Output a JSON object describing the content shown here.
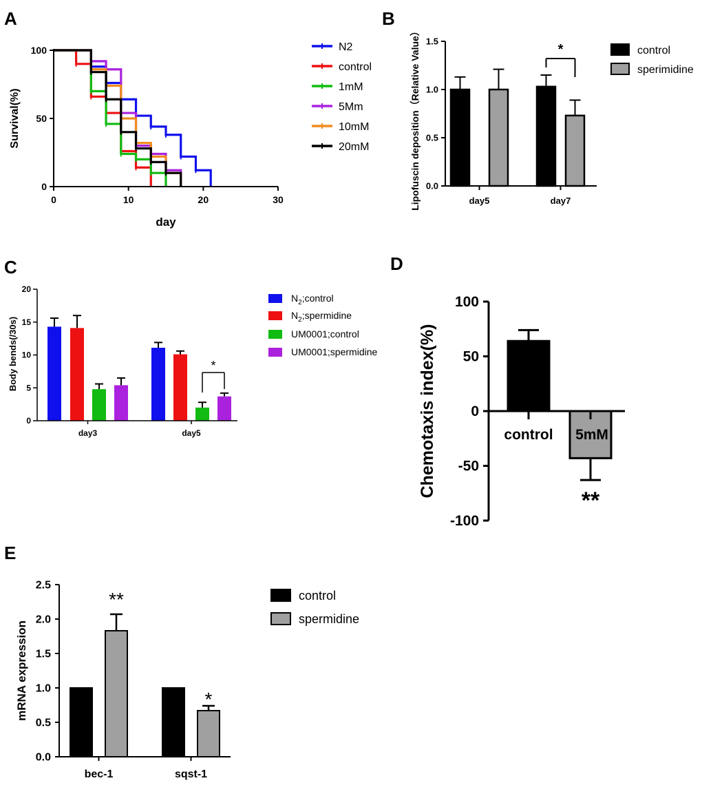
{
  "colors": {
    "blue": "#1010ee",
    "red": "#ee1111",
    "green": "#11bb11",
    "purple": "#aa22dd",
    "orange": "#f08c1e",
    "black": "#000000",
    "gray": "#a0a0a0"
  },
  "chart_data": [
    {
      "panel": "A",
      "type": "line",
      "xlabel": "day",
      "ylabel": "Survival(%)",
      "xlim": [
        0,
        30
      ],
      "ylim": [
        0,
        100
      ],
      "xticks": [
        0,
        10,
        20,
        30
      ],
      "yticks": [
        0,
        50,
        100
      ],
      "legend_position": "right",
      "series": [
        {
          "name": "N2",
          "color": "#1010ee",
          "x": [
            0,
            5,
            7,
            9,
            11,
            13,
            15,
            17,
            19,
            21
          ],
          "y": [
            100,
            88,
            76,
            64,
            52,
            44,
            38,
            22,
            12,
            0
          ]
        },
        {
          "name": "control",
          "color": "#ee1111",
          "x": [
            0,
            3,
            5,
            7,
            9,
            11,
            13
          ],
          "y": [
            100,
            90,
            66,
            54,
            26,
            14,
            0
          ]
        },
        {
          "name": "1mM",
          "color": "#11bb11",
          "x": [
            0,
            5,
            7,
            9,
            11,
            13,
            15
          ],
          "y": [
            100,
            70,
            46,
            24,
            20,
            10,
            0
          ]
        },
        {
          "name": "5Mm",
          "color": "#aa22dd",
          "x": [
            0,
            5,
            7,
            9,
            11,
            13,
            15,
            17
          ],
          "y": [
            100,
            92,
            86,
            54,
            30,
            24,
            12,
            0
          ]
        },
        {
          "name": "10mM",
          "color": "#f08c1e",
          "x": [
            0,
            5,
            7,
            9,
            11,
            13,
            15,
            17
          ],
          "y": [
            100,
            86,
            74,
            50,
            32,
            22,
            10,
            0
          ]
        },
        {
          "name": "20mM",
          "color": "#000000",
          "x": [
            0,
            5,
            7,
            9,
            11,
            13,
            15,
            17
          ],
          "y": [
            100,
            84,
            64,
            40,
            28,
            18,
            10,
            0
          ]
        }
      ]
    },
    {
      "panel": "B",
      "type": "bar",
      "ylabel": "Lipofuscin deposition（Relative Value）",
      "categories": [
        "day5",
        "day7"
      ],
      "ylim": [
        0,
        1.5
      ],
      "yticks": [
        "0.0",
        "0.5",
        "1.0",
        "1.5"
      ],
      "legend_position": "right",
      "series": [
        {
          "name": "control",
          "color": "#000000",
          "values": [
            1.0,
            1.03
          ],
          "errors": [
            0.13,
            0.12
          ]
        },
        {
          "name": "sperimidine",
          "color": "#a0a0a0",
          "values": [
            1.0,
            0.73
          ],
          "errors": [
            0.21,
            0.16
          ]
        }
      ],
      "annotations": [
        {
          "text": "*",
          "category": "day7",
          "type": "bracket"
        }
      ]
    },
    {
      "panel": "C",
      "type": "bar",
      "ylabel": "Body bends(/30s)",
      "categories": [
        "day3",
        "day5"
      ],
      "ylim": [
        0,
        20
      ],
      "yticks": [
        0,
        5,
        10,
        15,
        20
      ],
      "legend_position": "right",
      "series": [
        {
          "name_main": "N",
          "name_sub": "2",
          "name_rest": ";control",
          "color": "#1010ee",
          "values": [
            14.3,
            11.1
          ],
          "errors": [
            1.3,
            0.8
          ]
        },
        {
          "name_main": "N",
          "name_sub": "2",
          "name_rest": ";spermidine",
          "color": "#ee1111",
          "values": [
            14.1,
            10.1
          ],
          "errors": [
            1.9,
            0.5
          ]
        },
        {
          "name": "UM0001;control",
          "color": "#11bb11",
          "values": [
            4.8,
            2.0
          ],
          "errors": [
            0.8,
            0.8
          ]
        },
        {
          "name": "UM0001;spermidine",
          "color": "#aa22dd",
          "values": [
            5.4,
            3.7
          ],
          "errors": [
            1.1,
            0.5
          ]
        }
      ],
      "annotations": [
        {
          "text": "*",
          "category": "day5",
          "type": "bracket"
        }
      ]
    },
    {
      "panel": "D",
      "type": "bar",
      "ylabel": "Chemotaxis index(%)",
      "categories": [
        "control",
        "5mM"
      ],
      "ylim": [
        -100,
        100
      ],
      "yticks": [
        -100,
        -50,
        0,
        50,
        100
      ],
      "series": [
        {
          "colors": [
            "#000000",
            "#a0a0a0"
          ],
          "values": [
            64,
            -43
          ],
          "errors": [
            10,
            20
          ]
        }
      ],
      "annotations": [
        {
          "text": "**",
          "category": "5mM"
        }
      ]
    },
    {
      "panel": "E",
      "type": "bar",
      "ylabel": "mRNA expression",
      "categories": [
        "bec-1",
        "sqst-1"
      ],
      "ylim": [
        0,
        2.5
      ],
      "yticks": [
        "0.0",
        "0.5",
        "1.0",
        "1.5",
        "2.0",
        "2.5"
      ],
      "legend_position": "right",
      "series": [
        {
          "name": "control",
          "color": "#000000",
          "values": [
            1.0,
            1.0
          ]
        },
        {
          "name": "spermidine",
          "color": "#a0a0a0",
          "values": [
            1.83,
            0.67
          ],
          "errors": [
            0.24,
            0.07
          ]
        }
      ],
      "annotations": [
        {
          "text": "**",
          "category": "bec-1"
        },
        {
          "text": "*",
          "category": "sqst-1"
        }
      ]
    }
  ]
}
